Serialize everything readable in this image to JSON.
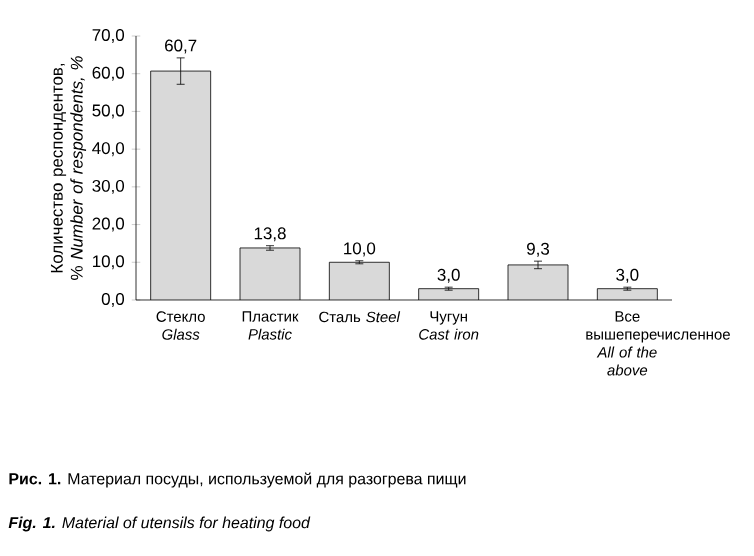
{
  "chart_data": {
    "type": "bar",
    "ylabel": "Количество респондентов, % *Number of respondents, %*",
    "categories": [
      "Стекло *Glass*",
      "Пластик *Plastic*",
      "Сталь *Steel*",
      "Чугун *Cast iron*",
      null,
      "Все вышеперечисленное *All of the above*"
    ],
    "values": [
      60.7,
      13.8,
      10.0,
      3.0,
      9.3,
      3.0
    ],
    "errors": [
      3.5,
      0.6,
      0.4,
      0.4,
      1.0,
      0.4
    ],
    "value_labels": [
      "60,7",
      "13,8",
      "10,0",
      "3,0",
      "9,3",
      "3,0"
    ],
    "color": "#d9d9d9",
    "ylim": [
      0,
      70
    ],
    "yticks": [
      {
        "value": 0,
        "label": "0,0"
      },
      {
        "value": 10,
        "label": "10,0"
      },
      {
        "value": 20,
        "label": "20,0"
      },
      {
        "value": 30,
        "label": "30,0"
      },
      {
        "value": 40,
        "label": "40,0"
      },
      {
        "value": 50,
        "label": "50,0"
      },
      {
        "value": 60,
        "label": "60,0"
      },
      {
        "value": 70,
        "label": "70,0"
      }
    ],
    "annotations": [
      "**Рис. 1.** Материал посуды, используемой для разогрева пищи",
      "**Fig. 1.** Material of utensils for heating food"
    ]
  }
}
